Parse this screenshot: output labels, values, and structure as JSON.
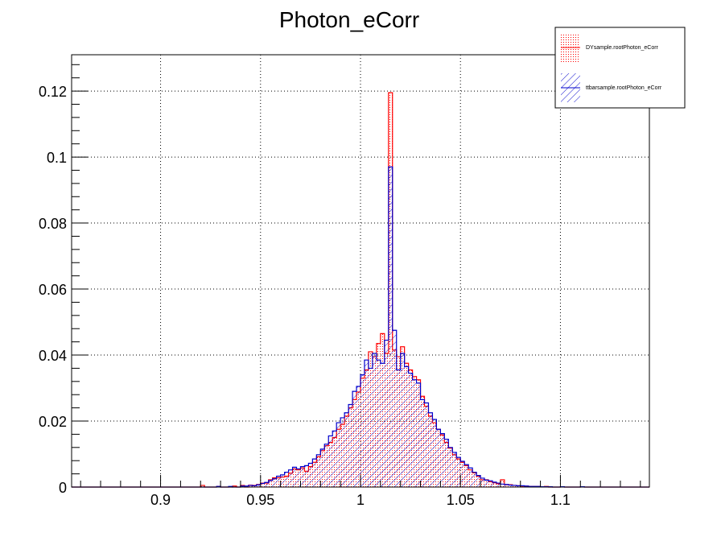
{
  "chart_data": {
    "type": "histogram",
    "title": "Photon_eCorr",
    "xlabel": "",
    "ylabel": "",
    "xlim": [
      0.8555,
      1.1445
    ],
    "ylim": [
      0,
      0.131
    ],
    "xticks": [
      {
        "value": 0.9,
        "label": "0.9"
      },
      {
        "value": 0.95,
        "label": "0.95"
      },
      {
        "value": 1.0,
        "label": "1"
      },
      {
        "value": 1.05,
        "label": "1.05"
      },
      {
        "value": 1.1,
        "label": "1.1"
      }
    ],
    "yticks": [
      {
        "value": 0,
        "label": "0"
      },
      {
        "value": 0.02,
        "label": "0.02"
      },
      {
        "value": 0.04,
        "label": "0.04"
      },
      {
        "value": 0.06,
        "label": "0.06"
      },
      {
        "value": 0.08,
        "label": "0.08"
      },
      {
        "value": 0.1,
        "label": "0.1"
      },
      {
        "value": 0.12,
        "label": "0.12"
      }
    ],
    "grid": true,
    "legend_position": "top-right",
    "bin_width": 0.002,
    "series": [
      {
        "name": "DYsample.rootPhoton_eCorr",
        "color": "#ff0000",
        "fill": "dotted",
        "bin_start": 0.92,
        "values": [
          0.0005,
          0,
          0,
          0,
          0.0002,
          0,
          0,
          0,
          0.0003,
          0,
          0.0005,
          0,
          0.0006,
          0.0005,
          0.0008,
          0.0012,
          0.0012,
          0.0022,
          0.0028,
          0.0028,
          0.003,
          0.0033,
          0.0042,
          0.0055,
          0.0052,
          0.0058,
          0.0048,
          0.0062,
          0.0075,
          0.0092,
          0.011,
          0.0125,
          0.0135,
          0.015,
          0.0175,
          0.019,
          0.0215,
          0.024,
          0.0265,
          0.0288,
          0.033,
          0.0355,
          0.041,
          0.0395,
          0.0435,
          0.0465,
          0.0405,
          0.1195,
          0.0415,
          0.0395,
          0.0425,
          0.0375,
          0.0355,
          0.0335,
          0.0325,
          0.0275,
          0.0245,
          0.0215,
          0.0195,
          0.0175,
          0.0158,
          0.0135,
          0.0118,
          0.0098,
          0.0085,
          0.0075,
          0.0065,
          0.0052,
          0.0043,
          0.0033,
          0.0022,
          0.0022,
          0.0016,
          0.0013,
          0.001,
          0.0022,
          0.0007,
          0.0007,
          0.0005,
          0.0004,
          0.0003,
          0.0003,
          0.0002,
          0.0002,
          0.0002,
          0.0001,
          0.0002,
          0,
          0,
          0,
          0.0001,
          0,
          0,
          0,
          0,
          0.0001
        ]
      },
      {
        "name": "ttbarsample.rootPhoton_eCorr",
        "color": "#0000cc",
        "fill": "hatched",
        "bin_start": 0.92,
        "values": [
          0,
          0,
          0,
          0,
          0.0002,
          0,
          0,
          0.0002,
          0,
          0,
          0.0003,
          0.0003,
          0.0005,
          0.0004,
          0.0007,
          0.0011,
          0.0014,
          0.002,
          0.0025,
          0.0033,
          0.0037,
          0.0045,
          0.0052,
          0.006,
          0.0055,
          0.0062,
          0.0065,
          0.0072,
          0.0085,
          0.0098,
          0.0115,
          0.013,
          0.0155,
          0.017,
          0.0195,
          0.021,
          0.0225,
          0.025,
          0.029,
          0.0305,
          0.034,
          0.0385,
          0.036,
          0.0405,
          0.0385,
          0.0375,
          0.0445,
          0.097,
          0.0475,
          0.0355,
          0.0405,
          0.0365,
          0.0345,
          0.0325,
          0.0315,
          0.0265,
          0.0255,
          0.0225,
          0.0205,
          0.0175,
          0.0162,
          0.0145,
          0.012,
          0.0105,
          0.009,
          0.0078,
          0.0068,
          0.0058,
          0.0045,
          0.0035,
          0.0027,
          0.0021,
          0.0019,
          0.0015,
          0.0012,
          0.0009,
          0.0008,
          0.0006,
          0.0005,
          0.0004,
          0.0004,
          0.0003,
          0.0002,
          0.0002,
          0.0002,
          0.0001,
          0.0001,
          0.0001,
          0,
          0,
          0.0001,
          0,
          0,
          0,
          0,
          0.0001
        ]
      }
    ]
  }
}
